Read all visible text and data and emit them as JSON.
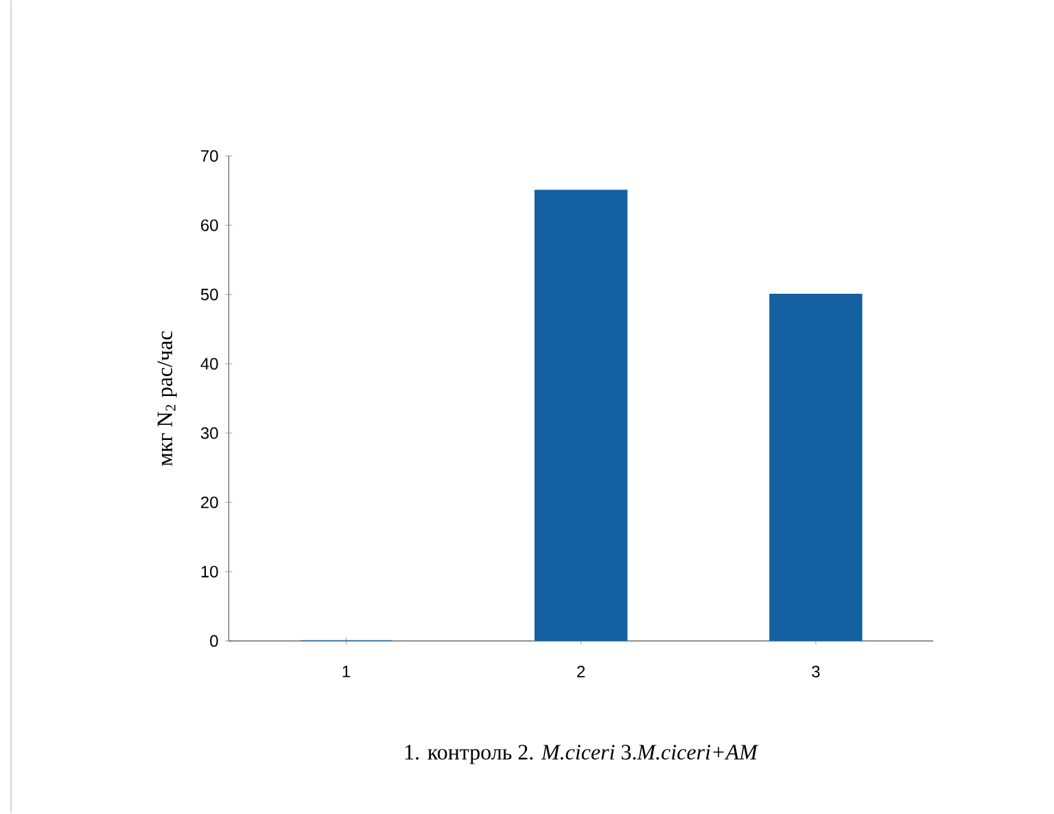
{
  "chart_data": {
    "type": "bar",
    "categories": [
      "1",
      "2",
      "3"
    ],
    "values": [
      0,
      65,
      50
    ],
    "color": "#1560a0",
    "ylim": [
      0,
      70
    ],
    "yticks": [
      0,
      10,
      20,
      30,
      40,
      50,
      60,
      70
    ],
    "ylabel": "мкг N$_{2}$ рас/час",
    "xlabel": "1. контроль  2. *M.ciceri*  3.*M.ciceri+AM*"
  }
}
